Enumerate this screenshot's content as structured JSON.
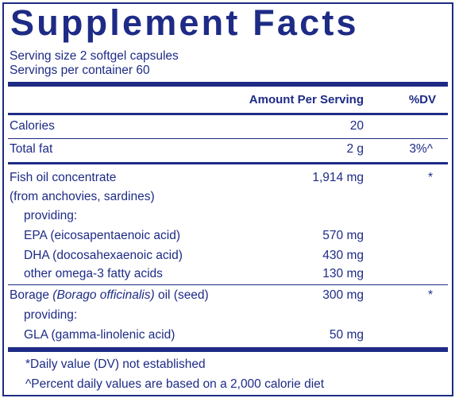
{
  "title": "Supplement Facts",
  "serving_size": "Serving size  2 softgel capsules",
  "servings_per_container": "Servings per container  60",
  "headers": {
    "amount": "Amount Per Serving",
    "dv": "%DV"
  },
  "rows": [
    {
      "label": "Calories",
      "amount": "20",
      "dv": ""
    },
    {
      "label": "Total fat",
      "amount": "2 g",
      "dv": "3%^"
    },
    {
      "label": "Fish oil concentrate",
      "amount": "1,914 mg",
      "dv": "*"
    },
    {
      "label": "(from anchovies, sardines)",
      "amount": "",
      "dv": ""
    },
    {
      "label": "providing:",
      "amount": "",
      "dv": ""
    },
    {
      "label": "EPA (eicosapentaenoic acid)",
      "amount": "570 mg",
      "dv": ""
    },
    {
      "label": "DHA (docosahexaenoic acid)",
      "amount": "430 mg",
      "dv": ""
    },
    {
      "label": "other omega-3 fatty acids",
      "amount": "130 mg",
      "dv": ""
    },
    {
      "label_pre": "Borage ",
      "label_italic": "(Borago officinalis)",
      "label_post": " oil (seed)",
      "amount": "300 mg",
      "dv": "*"
    },
    {
      "label": "providing:",
      "amount": "",
      "dv": ""
    },
    {
      "label": "GLA (gamma-linolenic acid)",
      "amount": "50 mg",
      "dv": ""
    }
  ],
  "footnotes": [
    "*Daily value (DV) not established",
    "^Percent daily values are based on a 2,000 calorie diet"
  ],
  "colors": {
    "ink": "#1e2b86",
    "background": "#ffffff"
  }
}
